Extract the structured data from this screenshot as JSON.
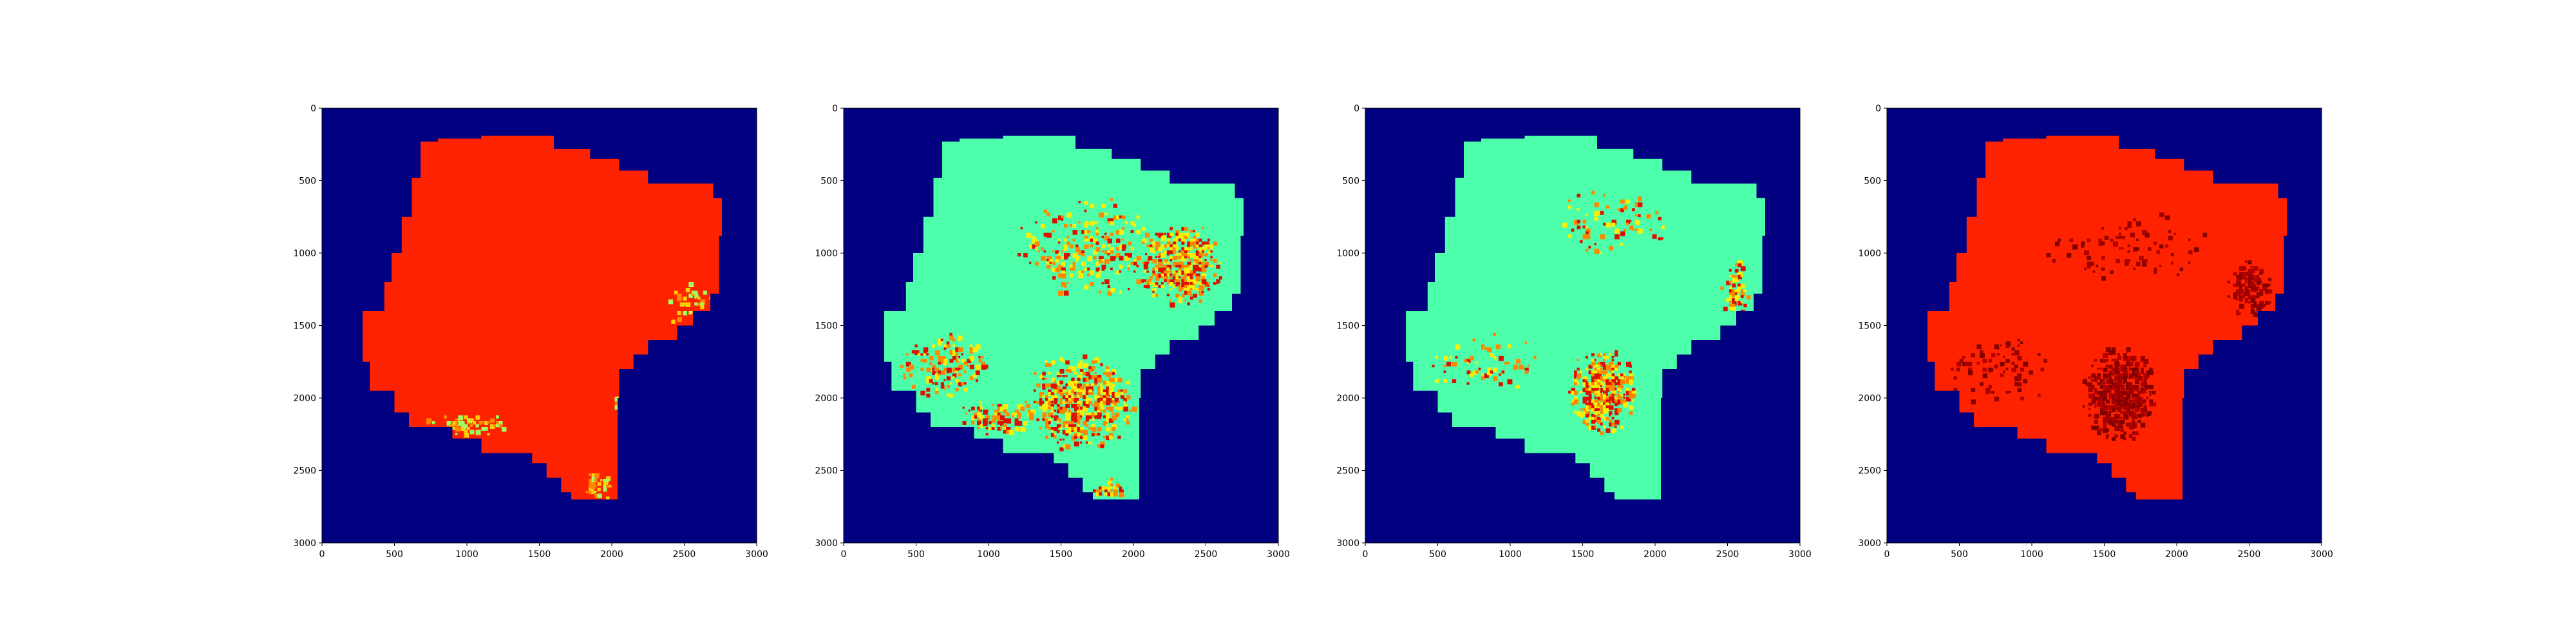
{
  "chart_data": [
    {
      "type": "heatmap",
      "colormap": "jet",
      "background_color": "#000080",
      "dominant_fill": "#ff2200",
      "highlight_colors": [
        "#ffd000",
        "#a0ff60",
        "#ff8800"
      ],
      "xlim": [
        0,
        3000
      ],
      "ylim": [
        3000,
        0
      ],
      "xticks": [
        "0",
        "500",
        "1000",
        "1500",
        "2000",
        "2500",
        "3000"
      ],
      "yticks": [
        "0",
        "500",
        "1000",
        "1500",
        "2000",
        "2500",
        "3000"
      ],
      "grid": false,
      "speckle_regions": [
        {
          "x": [
            700,
            1300
          ],
          "y": [
            2100,
            2250
          ],
          "density": 0.4
        },
        {
          "x": [
            1800,
            2000
          ],
          "y": [
            2500,
            2700
          ],
          "density": 0.5
        },
        {
          "x": [
            2350,
            2750
          ],
          "y": [
            1200,
            1500
          ],
          "density": 0.25
        },
        {
          "x": [
            2000,
            2050
          ],
          "y": [
            1950,
            2100
          ],
          "density": 0.4
        }
      ]
    },
    {
      "type": "heatmap",
      "colormap": "jet",
      "background_color": "#000080",
      "dominant_fill": "#4dffaa",
      "highlight_colors": [
        "#ffee00",
        "#ff8800",
        "#dd1100"
      ],
      "xlim": [
        0,
        3000
      ],
      "ylim": [
        3000,
        0
      ],
      "xticks": [
        "0",
        "500",
        "1000",
        "1500",
        "2000",
        "2500",
        "3000"
      ],
      "yticks": [
        "0",
        "500",
        "1000",
        "1500",
        "2000",
        "2500",
        "3000"
      ],
      "grid": false,
      "speckle_regions": [
        {
          "x": [
            2050,
            2600
          ],
          "y": [
            800,
            1350
          ],
          "density": 0.65
        },
        {
          "x": [
            1250,
            2000
          ],
          "y": [
            1700,
            2350
          ],
          "density": 0.55
        },
        {
          "x": [
            350,
            1000
          ],
          "y": [
            1550,
            2000
          ],
          "density": 0.3
        },
        {
          "x": [
            1200,
            2150
          ],
          "y": [
            600,
            1300
          ],
          "density": 0.22
        },
        {
          "x": [
            1700,
            1950
          ],
          "y": [
            2550,
            2700
          ],
          "density": 0.6
        },
        {
          "x": [
            800,
            1300
          ],
          "y": [
            2000,
            2250
          ],
          "density": 0.45
        }
      ]
    },
    {
      "type": "heatmap",
      "colormap": "jet",
      "background_color": "#000080",
      "dominant_fill": "#4dffaa",
      "highlight_colors": [
        "#ffee00",
        "#ff8800",
        "#dd1100"
      ],
      "xlim": [
        0,
        3000
      ],
      "ylim": [
        3000,
        0
      ],
      "xticks": [
        "0",
        "500",
        "1000",
        "1500",
        "2000",
        "2500",
        "3000"
      ],
      "yticks": [
        "0",
        "500",
        "1000",
        "1500",
        "2000",
        "2500",
        "3000"
      ],
      "grid": false,
      "speckle_regions": [
        {
          "x": [
            1400,
            1850
          ],
          "y": [
            1650,
            2250
          ],
          "density": 0.7
        },
        {
          "x": [
            2450,
            2650
          ],
          "y": [
            1050,
            1450
          ],
          "density": 0.55
        },
        {
          "x": [
            1300,
            2100
          ],
          "y": [
            550,
            1000
          ],
          "density": 0.15
        },
        {
          "x": [
            400,
            1200
          ],
          "y": [
            1550,
            1950
          ],
          "density": 0.12
        }
      ]
    },
    {
      "type": "heatmap",
      "colormap": "jet",
      "background_color": "#000080",
      "dominant_fill": "#ff2200",
      "highlight_colors": [
        "#9a0000",
        "#b00000",
        "#800000"
      ],
      "xlim": [
        0,
        3000
      ],
      "ylim": [
        3000,
        0
      ],
      "xticks": [
        "0",
        "500",
        "1000",
        "1500",
        "2000",
        "2500",
        "3000"
      ],
      "yticks": [
        "0",
        "500",
        "1000",
        "1500",
        "2000",
        "2500",
        "3000"
      ],
      "grid": false,
      "speckle_regions": [
        {
          "x": [
            1350,
            1850
          ],
          "y": [
            1650,
            2300
          ],
          "density": 0.7
        },
        {
          "x": [
            2350,
            2650
          ],
          "y": [
            1050,
            1450
          ],
          "density": 0.55
        },
        {
          "x": [
            400,
            1100
          ],
          "y": [
            1550,
            2050
          ],
          "density": 0.15
        },
        {
          "x": [
            1100,
            2200
          ],
          "y": [
            700,
            1200
          ],
          "density": 0.1
        }
      ]
    }
  ]
}
